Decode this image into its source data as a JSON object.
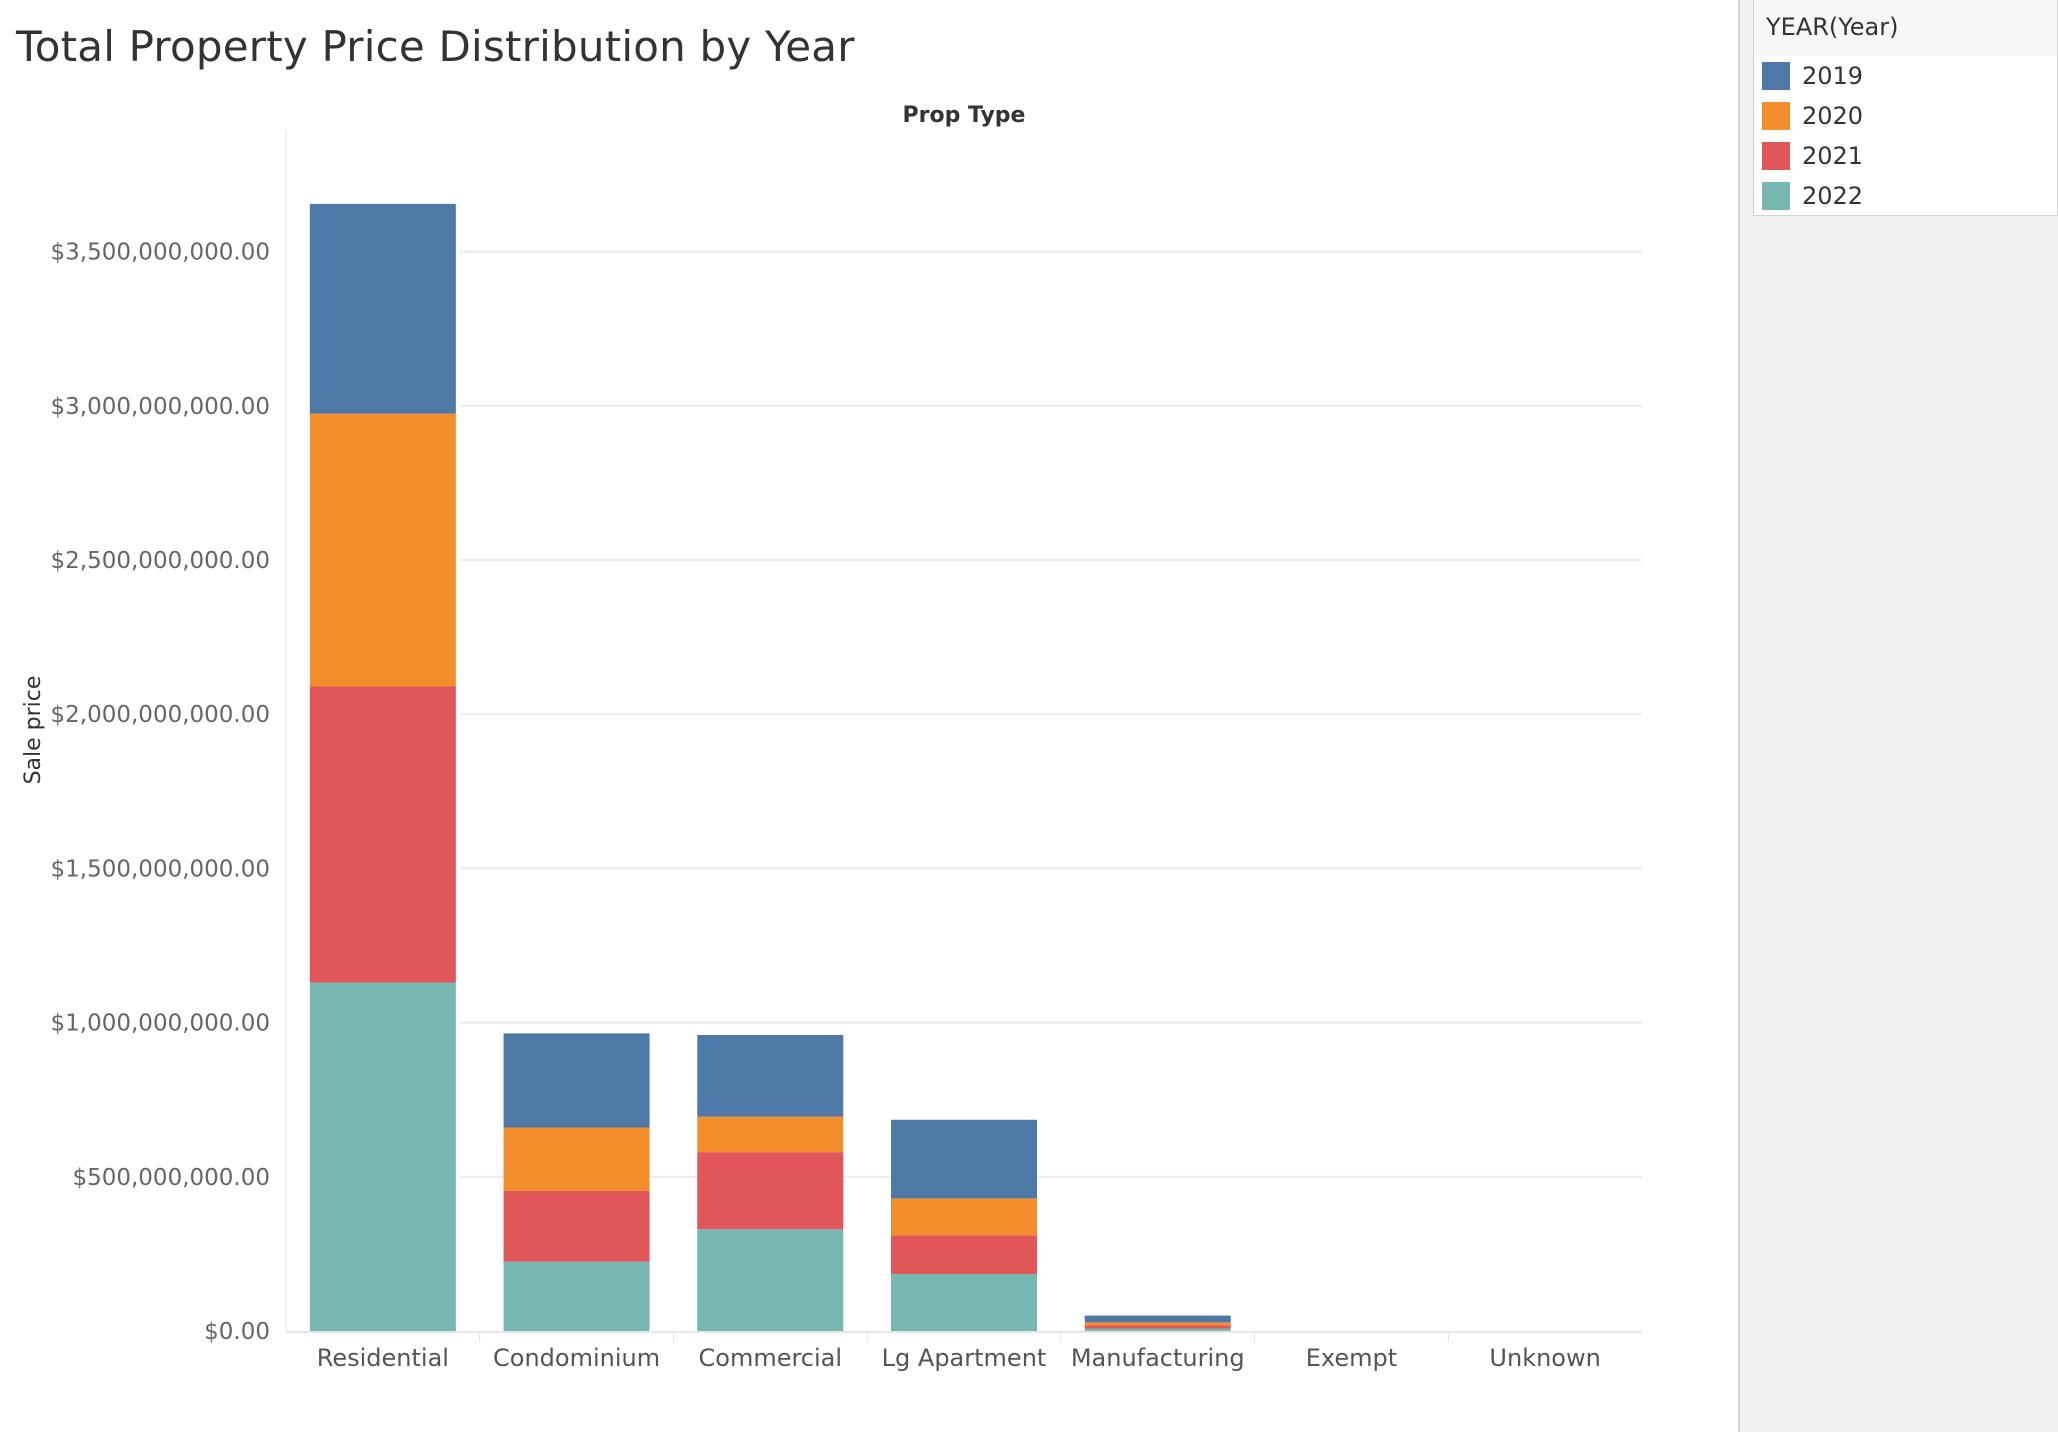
{
  "title": "Total Property Price Distribution by Year",
  "legend": {
    "title": "YEAR(Year)",
    "items": [
      {
        "label": "2019",
        "color": "#4e79a7"
      },
      {
        "label": "2020",
        "color": "#f28e2b"
      },
      {
        "label": "2021",
        "color": "#e15759"
      },
      {
        "label": "2022",
        "color": "#76b7b2"
      }
    ]
  },
  "chart_data": {
    "type": "bar",
    "stacked": true,
    "title": "Total Property Price Distribution by Year",
    "xlabel": "Prop Type",
    "ylabel": "Sale price",
    "categories": [
      "Residential",
      "Condominium",
      "Commercial",
      "Lg Apartment",
      "Manufacturing",
      "Exempt",
      "Unknown"
    ],
    "series": [
      {
        "name": "2022",
        "color": "#76b7b2",
        "values": [
          1130000000,
          225000000,
          330000000,
          185000000,
          8000000,
          0,
          0
        ]
      },
      {
        "name": "2021",
        "color": "#e15759",
        "values": [
          960000000,
          230000000,
          250000000,
          125000000,
          10000000,
          0,
          0
        ]
      },
      {
        "name": "2020",
        "color": "#f28e2b",
        "values": [
          885000000,
          205000000,
          115000000,
          120000000,
          10000000,
          0,
          0
        ]
      },
      {
        "name": "2019",
        "color": "#4e79a7",
        "values": [
          680000000,
          305000000,
          265000000,
          255000000,
          22000000,
          0,
          0
        ]
      }
    ],
    "yticks": [
      0,
      500000000,
      1000000000,
      1500000000,
      2000000000,
      2500000000,
      3000000000,
      3500000000
    ],
    "ytick_labels": [
      "$0.00",
      "$500,000,000.00",
      "$1,000,000,000.00",
      "$1,500,000,000.00",
      "$2,000,000,000.00",
      "$2,500,000,000.00",
      "$3,000,000,000.00",
      "$3,500,000,000.00"
    ],
    "ylim": [
      0,
      3700000000
    ],
    "grid": true,
    "legend_position": "top-right"
  }
}
